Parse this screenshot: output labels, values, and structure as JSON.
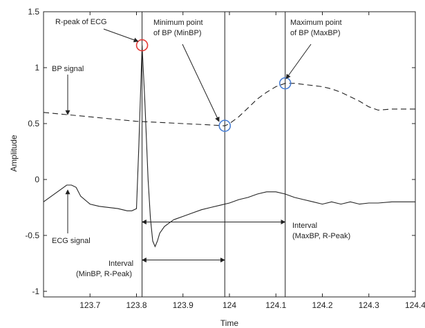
{
  "chart_data": {
    "type": "line",
    "xlabel": "Time",
    "ylabel": "Amplitude",
    "xlim": [
      123.6,
      124.4
    ],
    "ylim": [
      -1.05,
      1.5
    ],
    "x_ticks": [
      123.7,
      123.8,
      123.9,
      124.0,
      124.1,
      124.2,
      124.3,
      124.4
    ],
    "x_tick_labels": [
      "123.7",
      "123.8",
      "123.9",
      "124",
      "124.1",
      "124.2",
      "124.3",
      "124.4"
    ],
    "y_ticks": [
      -1,
      -0.5,
      0,
      0.5,
      1,
      1.5
    ],
    "y_tick_labels": [
      "-1",
      "-0.5",
      "0",
      "0.5",
      "1",
      "1.5"
    ],
    "grid": false,
    "series": [
      {
        "name": "BP signal",
        "style": "dashed",
        "color": "#222222",
        "x": [
          123.6,
          123.65,
          123.7,
          123.75,
          123.8,
          123.85,
          123.9,
          123.95,
          123.99,
          124.0,
          124.02,
          124.04,
          124.06,
          124.08,
          124.1,
          124.12,
          124.14,
          124.16,
          124.18,
          124.2,
          124.22,
          124.24,
          124.26,
          124.28,
          124.3,
          124.32,
          124.35,
          124.38,
          124.4
        ],
        "y": [
          0.6,
          0.58,
          0.56,
          0.54,
          0.52,
          0.51,
          0.5,
          0.49,
          0.48,
          0.5,
          0.56,
          0.64,
          0.72,
          0.78,
          0.83,
          0.86,
          0.86,
          0.85,
          0.84,
          0.83,
          0.81,
          0.78,
          0.74,
          0.7,
          0.65,
          0.62,
          0.63,
          0.63,
          0.63
        ]
      },
      {
        "name": "ECG signal",
        "style": "solid",
        "color": "#222222",
        "x": [
          123.6,
          123.62,
          123.64,
          123.65,
          123.66,
          123.67,
          123.68,
          123.7,
          123.72,
          123.74,
          123.76,
          123.78,
          123.79,
          123.8,
          123.805,
          123.812,
          123.818,
          123.825,
          123.83,
          123.835,
          123.84,
          123.845,
          123.85,
          123.86,
          123.87,
          123.88,
          123.9,
          123.92,
          123.94,
          123.96,
          123.98,
          124.0,
          124.02,
          124.04,
          124.06,
          124.08,
          124.1,
          124.12,
          124.14,
          124.16,
          124.18,
          124.2,
          124.22,
          124.24,
          124.26,
          124.28,
          124.3,
          124.32,
          124.35,
          124.38,
          124.4
        ],
        "y": [
          -0.2,
          -0.14,
          -0.08,
          -0.05,
          -0.05,
          -0.07,
          -0.15,
          -0.22,
          -0.24,
          -0.25,
          -0.26,
          -0.28,
          -0.28,
          -0.26,
          0.3,
          1.2,
          0.7,
          0.0,
          -0.35,
          -0.55,
          -0.6,
          -0.55,
          -0.48,
          -0.42,
          -0.39,
          -0.36,
          -0.33,
          -0.3,
          -0.27,
          -0.25,
          -0.23,
          -0.21,
          -0.18,
          -0.16,
          -0.13,
          -0.11,
          -0.11,
          -0.13,
          -0.16,
          -0.18,
          -0.2,
          -0.22,
          -0.2,
          -0.22,
          -0.2,
          -0.22,
          -0.21,
          -0.21,
          -0.2,
          -0.2,
          -0.2
        ]
      }
    ],
    "vertical_lines": [
      {
        "x": 123.812,
        "label": "R-peak of ECG"
      },
      {
        "x": 123.99,
        "label": "Minimum point of BP (MinBP)"
      },
      {
        "x": 124.12,
        "label": "Maximum point of BP (MaxBP)"
      }
    ],
    "markers": [
      {
        "name": "R-peak of ECG",
        "x": 123.812,
        "y": 1.2,
        "color": "#e53935"
      },
      {
        "name": "Minimum point of BP (MinBP)",
        "x": 123.99,
        "y": 0.48,
        "color": "#4a7fd4"
      },
      {
        "name": "Maximum point of BP (MaxBP)",
        "x": 124.12,
        "y": 0.86,
        "color": "#4a7fd4"
      }
    ],
    "intervals": [
      {
        "name": "Interval (MaxBP, R-Peak)",
        "x1": 123.812,
        "x2": 124.12,
        "y": -0.38
      },
      {
        "name": "Interval (MinBP, R-Peak)",
        "x1": 123.812,
        "x2": 123.99,
        "y": -0.72
      }
    ],
    "annotations": {
      "r_peak": "R-peak of ECG",
      "min_bp_line1": "Minimum point",
      "min_bp_line2": "of BP (MinBP)",
      "max_bp_line1": "Maximum point",
      "max_bp_line2": "of BP (MaxBP)",
      "bp_signal": "BP signal",
      "ecg_signal": "ECG signal",
      "interval_max_line1": "Interval",
      "interval_max_line2": "(MaxBP, R-Peak)",
      "interval_min_line1": "Interval",
      "interval_min_line2": "(MinBP, R-Peak)"
    }
  }
}
